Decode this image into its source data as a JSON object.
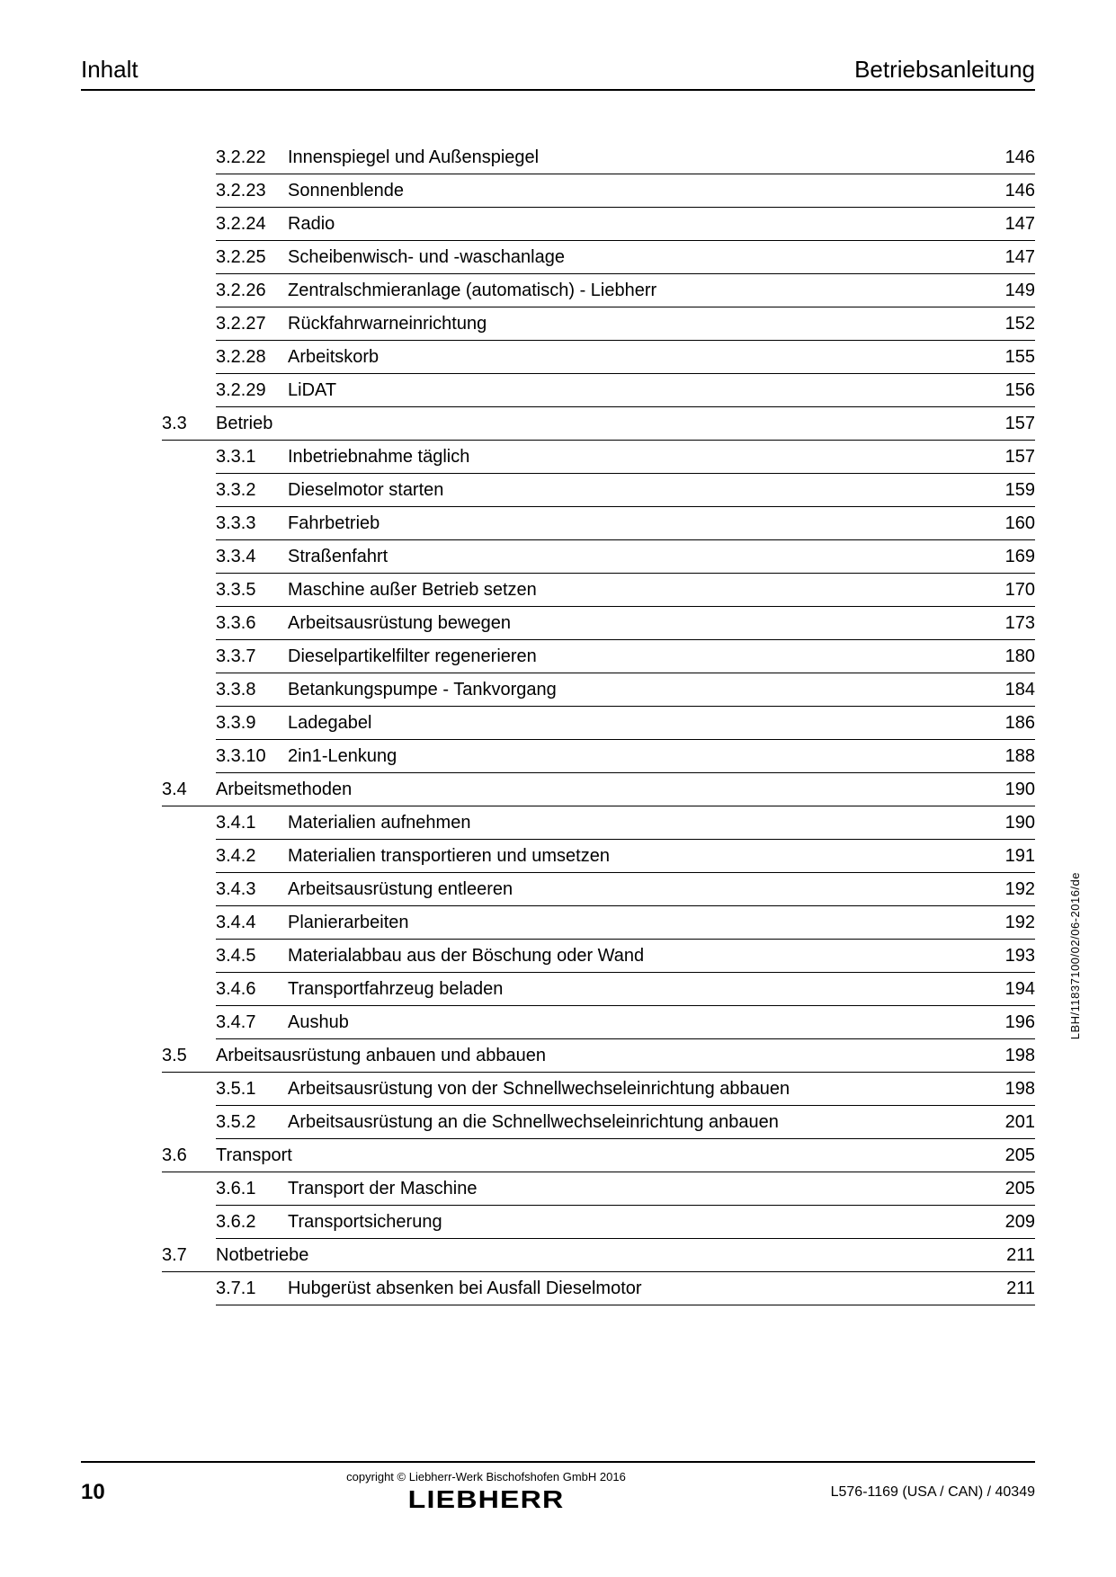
{
  "header": {
    "left": "Inhalt",
    "right": "Betriebsanleitung"
  },
  "toc": [
    {
      "type": "sub",
      "num": "3.2.22",
      "title": "Innenspiegel und Außenspiegel",
      "page": "146"
    },
    {
      "type": "sub",
      "num": "3.2.23",
      "title": "Sonnenblende",
      "page": "146"
    },
    {
      "type": "sub",
      "num": "3.2.24",
      "title": "Radio",
      "page": "147"
    },
    {
      "type": "sub",
      "num": "3.2.25",
      "title": "Scheibenwisch- und -waschanlage",
      "page": "147"
    },
    {
      "type": "sub",
      "num": "3.2.26",
      "title": "Zentralschmieranlage (automatisch) - Liebherr",
      "page": "149"
    },
    {
      "type": "sub",
      "num": "3.2.27",
      "title": "Rückfahrwarneinrichtung",
      "page": "152"
    },
    {
      "type": "sub",
      "num": "3.2.28",
      "title": "Arbeitskorb",
      "page": "155"
    },
    {
      "type": "sub",
      "num": "3.2.29",
      "title": "LiDAT",
      "page": "156"
    },
    {
      "type": "sec",
      "secnum": "3.3",
      "title": "Betrieb",
      "page": "157"
    },
    {
      "type": "sub",
      "num": "3.3.1",
      "title": "Inbetriebnahme täglich",
      "page": "157"
    },
    {
      "type": "sub",
      "num": "3.3.2",
      "title": "Dieselmotor starten",
      "page": "159"
    },
    {
      "type": "sub",
      "num": "3.3.3",
      "title": "Fahrbetrieb",
      "page": "160"
    },
    {
      "type": "sub",
      "num": "3.3.4",
      "title": "Straßenfahrt",
      "page": "169"
    },
    {
      "type": "sub",
      "num": "3.3.5",
      "title": "Maschine außer Betrieb setzen",
      "page": "170"
    },
    {
      "type": "sub",
      "num": "3.3.6",
      "title": "Arbeitsausrüstung bewegen",
      "page": "173"
    },
    {
      "type": "sub",
      "num": "3.3.7",
      "title": "Dieselpartikelfilter regenerieren",
      "page": "180"
    },
    {
      "type": "sub",
      "num": "3.3.8",
      "title": "Betankungspumpe - Tankvorgang",
      "page": "184"
    },
    {
      "type": "sub",
      "num": "3.3.9",
      "title": "Ladegabel",
      "page": "186"
    },
    {
      "type": "sub",
      "num": "3.3.10",
      "title": "2in1-Lenkung",
      "page": "188"
    },
    {
      "type": "sec",
      "secnum": "3.4",
      "title": "Arbeitsmethoden",
      "page": "190"
    },
    {
      "type": "sub",
      "num": "3.4.1",
      "title": "Materialien aufnehmen",
      "page": "190"
    },
    {
      "type": "sub",
      "num": "3.4.2",
      "title": "Materialien transportieren und umsetzen",
      "page": "191"
    },
    {
      "type": "sub",
      "num": "3.4.3",
      "title": "Arbeitsausrüstung entleeren",
      "page": "192"
    },
    {
      "type": "sub",
      "num": "3.4.4",
      "title": "Planierarbeiten",
      "page": "192"
    },
    {
      "type": "sub",
      "num": "3.4.5",
      "title": "Materialabbau aus der Böschung oder Wand",
      "page": "193"
    },
    {
      "type": "sub",
      "num": "3.4.6",
      "title": "Transportfahrzeug beladen",
      "page": "194"
    },
    {
      "type": "sub",
      "num": "3.4.7",
      "title": "Aushub",
      "page": "196"
    },
    {
      "type": "sec",
      "secnum": "3.5",
      "title": "Arbeitsausrüstung anbauen und abbauen",
      "page": "198"
    },
    {
      "type": "sub",
      "num": "3.5.1",
      "title": "Arbeitsausrüstung von der Schnellwechseleinrichtung abbauen",
      "page": "198"
    },
    {
      "type": "sub",
      "num": "3.5.2",
      "title": "Arbeitsausrüstung an die Schnellwechseleinrichtung anbauen",
      "page": "201"
    },
    {
      "type": "sec",
      "secnum": "3.6",
      "title": "Transport",
      "page": "205"
    },
    {
      "type": "sub",
      "num": "3.6.1",
      "title": "Transport der Maschine",
      "page": "205"
    },
    {
      "type": "sub",
      "num": "3.6.2",
      "title": "Transportsicherung",
      "page": "209"
    },
    {
      "type": "sec",
      "secnum": "3.7",
      "title": "Notbetriebe",
      "page": "211"
    },
    {
      "type": "sub",
      "num": "3.7.1",
      "title": "Hubgerüst absenken bei Ausfall Dieselmotor",
      "page": "211"
    }
  ],
  "side_label": "LBH/11837100/02/06-2016/de",
  "footer": {
    "page_number": "10",
    "copyright": "copyright © Liebherr-Werk Bischofshofen GmbH 2016",
    "logo": "LIEBHERR",
    "doc_ref": "L576-1169 (USA / CAN) / 40349"
  }
}
